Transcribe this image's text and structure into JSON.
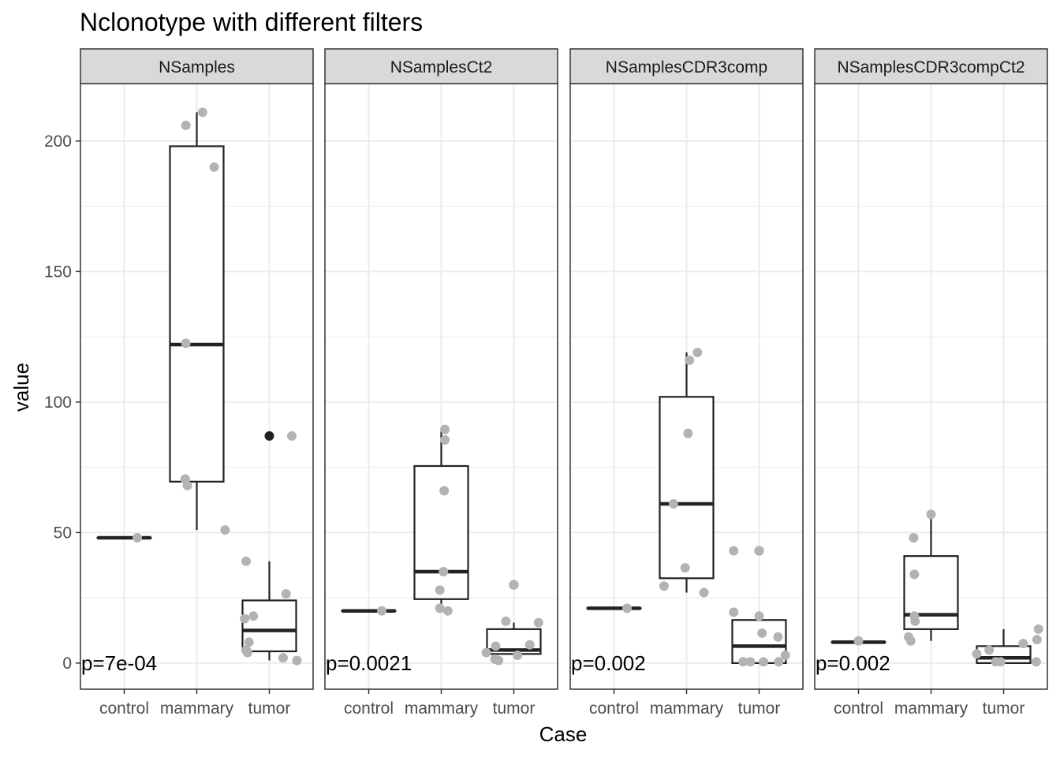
{
  "chart_data": {
    "type": "box",
    "title": "Nclonotype with different filters",
    "xlabel": "Case",
    "ylabel": "value",
    "categories": [
      "control",
      "mammary",
      "tumor"
    ],
    "ylim": [
      -10,
      222
    ],
    "yticks": [
      0,
      50,
      100,
      150,
      200
    ],
    "grid": true,
    "colors": {
      "box": "#222222",
      "points": "#b3b3b3",
      "outlier": "#222222",
      "strip_fill": "#d9d9d9",
      "grid_major": "#ebebeb"
    },
    "panels": [
      {
        "name": "NSamples",
        "pvalue": "p=7e-04",
        "boxes": [
          {
            "category": "control",
            "min": 48,
            "q1": 48,
            "median": 48,
            "q3": 48,
            "max": 48,
            "outliers": []
          },
          {
            "category": "mammary",
            "min": 51,
            "q1": 69.5,
            "median": 122,
            "q3": 198,
            "max": 211,
            "outliers": []
          },
          {
            "category": "tumor",
            "min": 1,
            "q1": 4.5,
            "median": 12.5,
            "q3": 24,
            "max": 39,
            "outliers": [
              87
            ]
          }
        ],
        "points": [
          {
            "category": "control",
            "offset": 0.18,
            "value": 48
          },
          {
            "category": "mammary",
            "offset": -0.15,
            "value": 206
          },
          {
            "category": "mammary",
            "offset": 0.08,
            "value": 211
          },
          {
            "category": "mammary",
            "offset": 0.24,
            "value": 190
          },
          {
            "category": "mammary",
            "offset": -0.15,
            "value": 122.5
          },
          {
            "category": "mammary",
            "offset": -0.16,
            "value": 70.5
          },
          {
            "category": "mammary",
            "offset": -0.13,
            "value": 68
          },
          {
            "category": "mammary",
            "offset": 0.39,
            "value": 51
          },
          {
            "category": "tumor",
            "offset": 0.31,
            "value": 87
          },
          {
            "category": "tumor",
            "offset": -0.32,
            "value": 39
          },
          {
            "category": "tumor",
            "offset": -0.22,
            "value": 18
          },
          {
            "category": "tumor",
            "offset": -0.34,
            "value": 17
          },
          {
            "category": "tumor",
            "offset": -0.28,
            "value": 8
          },
          {
            "category": "tumor",
            "offset": -0.32,
            "value": 5
          },
          {
            "category": "tumor",
            "offset": -0.3,
            "value": 4
          },
          {
            "category": "tumor",
            "offset": 0.23,
            "value": 26.5
          },
          {
            "category": "tumor",
            "offset": 0.19,
            "value": 2
          },
          {
            "category": "tumor",
            "offset": 0.38,
            "value": 1
          }
        ]
      },
      {
        "name": "NSamplesCt2",
        "pvalue": "p=0.0021",
        "boxes": [
          {
            "category": "control",
            "min": 20,
            "q1": 20,
            "median": 20,
            "q3": 20,
            "max": 20,
            "outliers": []
          },
          {
            "category": "mammary",
            "min": 21,
            "q1": 24.5,
            "median": 35,
            "q3": 75.5,
            "max": 89,
            "outliers": []
          },
          {
            "category": "tumor",
            "min": 3,
            "q1": 3.5,
            "median": 5,
            "q3": 13,
            "max": 15.5,
            "outliers": [
              30
            ]
          }
        ],
        "points": [
          {
            "category": "control",
            "offset": 0.18,
            "value": 20
          },
          {
            "category": "mammary",
            "offset": 0.05,
            "value": 89.5
          },
          {
            "category": "mammary",
            "offset": 0.05,
            "value": 85.5
          },
          {
            "category": "mammary",
            "offset": 0.04,
            "value": 66
          },
          {
            "category": "mammary",
            "offset": 0.03,
            "value": 35
          },
          {
            "category": "mammary",
            "offset": -0.02,
            "value": 28
          },
          {
            "category": "mammary",
            "offset": -0.02,
            "value": 21
          },
          {
            "category": "mammary",
            "offset": 0.09,
            "value": 20
          },
          {
            "category": "tumor",
            "offset": 0.0,
            "value": 30
          },
          {
            "category": "tumor",
            "offset": -0.11,
            "value": 16
          },
          {
            "category": "tumor",
            "offset": 0.34,
            "value": 15.5
          },
          {
            "category": "tumor",
            "offset": 0.22,
            "value": 7
          },
          {
            "category": "tumor",
            "offset": -0.25,
            "value": 6.5
          },
          {
            "category": "tumor",
            "offset": -0.38,
            "value": 4
          },
          {
            "category": "tumor",
            "offset": 0.05,
            "value": 3
          },
          {
            "category": "tumor",
            "offset": -0.26,
            "value": 1.5
          },
          {
            "category": "tumor",
            "offset": -0.21,
            "value": 1
          }
        ]
      },
      {
        "name": "NSamplesCDR3comp",
        "pvalue": "p=0.002",
        "boxes": [
          {
            "category": "control",
            "min": 21,
            "q1": 21,
            "median": 21,
            "q3": 21,
            "max": 21,
            "outliers": []
          },
          {
            "category": "mammary",
            "min": 27,
            "q1": 32.5,
            "median": 61,
            "q3": 102,
            "max": 119,
            "outliers": []
          },
          {
            "category": "tumor",
            "min": 0,
            "q1": 0,
            "median": 6.5,
            "q3": 16.5,
            "max": 16.5,
            "outliers": [
              43
            ]
          }
        ],
        "points": [
          {
            "category": "control",
            "offset": 0.18,
            "value": 21
          },
          {
            "category": "mammary",
            "offset": 0.15,
            "value": 119
          },
          {
            "category": "mammary",
            "offset": 0.04,
            "value": 116
          },
          {
            "category": "mammary",
            "offset": 0.02,
            "value": 88
          },
          {
            "category": "mammary",
            "offset": -0.18,
            "value": 61
          },
          {
            "category": "mammary",
            "offset": -0.02,
            "value": 36.5
          },
          {
            "category": "mammary",
            "offset": -0.31,
            "value": 29.5
          },
          {
            "category": "mammary",
            "offset": 0.24,
            "value": 27
          },
          {
            "category": "tumor",
            "offset": -0.35,
            "value": 43
          },
          {
            "category": "tumor",
            "offset": 0.0,
            "value": 43
          },
          {
            "category": "tumor",
            "offset": -0.35,
            "value": 19.5
          },
          {
            "category": "tumor",
            "offset": 0.0,
            "value": 18
          },
          {
            "category": "tumor",
            "offset": 0.04,
            "value": 11.5
          },
          {
            "category": "tumor",
            "offset": 0.26,
            "value": 10
          },
          {
            "category": "tumor",
            "offset": 0.36,
            "value": 3
          },
          {
            "category": "tumor",
            "offset": -0.22,
            "value": 0.5
          },
          {
            "category": "tumor",
            "offset": -0.12,
            "value": 0.5
          },
          {
            "category": "tumor",
            "offset": 0.06,
            "value": 0.5
          },
          {
            "category": "tumor",
            "offset": 0.27,
            "value": 0.5
          }
        ]
      },
      {
        "name": "NSamplesCDR3compCt2",
        "pvalue": "p=0.002",
        "boxes": [
          {
            "category": "control",
            "min": 8,
            "q1": 8,
            "median": 8,
            "q3": 8,
            "max": 8,
            "outliers": []
          },
          {
            "category": "mammary",
            "min": 8.5,
            "q1": 13,
            "median": 18.5,
            "q3": 41,
            "max": 57,
            "outliers": []
          },
          {
            "category": "tumor",
            "min": 0,
            "q1": 0,
            "median": 2,
            "q3": 6.5,
            "max": 13,
            "outliers": []
          }
        ],
        "points": [
          {
            "category": "control",
            "offset": 0.0,
            "value": 8.5
          },
          {
            "category": "mammary",
            "offset": 0.0,
            "value": 57
          },
          {
            "category": "mammary",
            "offset": -0.24,
            "value": 48
          },
          {
            "category": "mammary",
            "offset": -0.23,
            "value": 34
          },
          {
            "category": "mammary",
            "offset": -0.23,
            "value": 18
          },
          {
            "category": "mammary",
            "offset": -0.22,
            "value": 16
          },
          {
            "category": "mammary",
            "offset": -0.31,
            "value": 10
          },
          {
            "category": "mammary",
            "offset": -0.28,
            "value": 8.5
          },
          {
            "category": "tumor",
            "offset": 0.48,
            "value": 13
          },
          {
            "category": "tumor",
            "offset": 0.46,
            "value": 9
          },
          {
            "category": "tumor",
            "offset": 0.27,
            "value": 7.5
          },
          {
            "category": "tumor",
            "offset": -0.2,
            "value": 5
          },
          {
            "category": "tumor",
            "offset": -0.37,
            "value": 3.5
          },
          {
            "category": "tumor",
            "offset": -0.11,
            "value": 0.5
          },
          {
            "category": "tumor",
            "offset": -0.04,
            "value": 0.5
          },
          {
            "category": "tumor",
            "offset": 0.45,
            "value": 0.5
          }
        ]
      }
    ]
  }
}
